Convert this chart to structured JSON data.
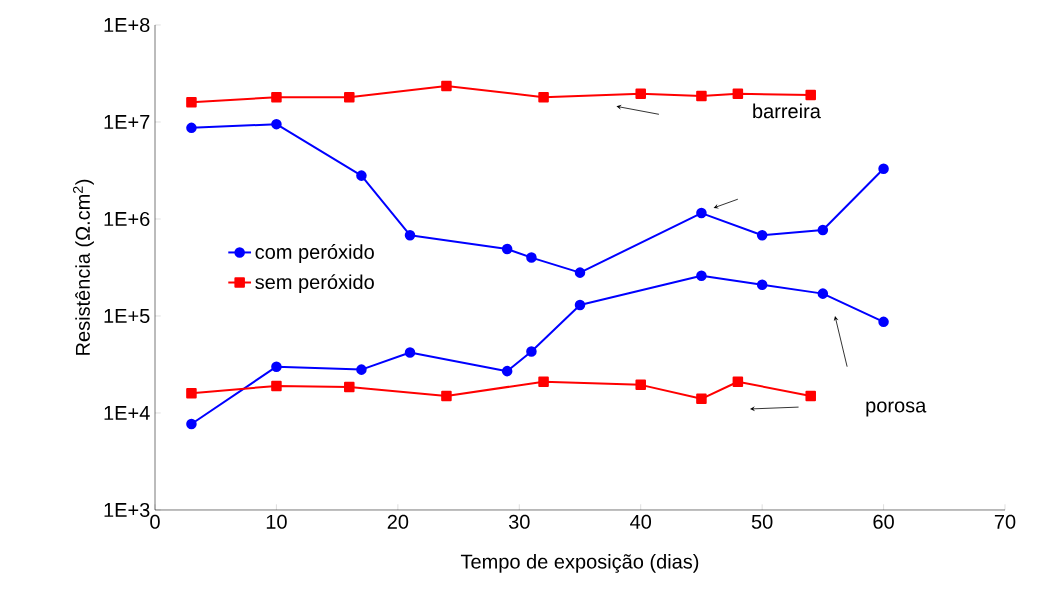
{
  "chart_data": {
    "type": "line",
    "xlabel": "Tempo de exposição (dias)",
    "ylabel": "Resistência (Ω.cm$^{2}$)",
    "log": "y",
    "grid": false,
    "legend": "left",
    "line_style": "solid",
    "xlim": [
      0,
      70
    ],
    "xticks": [
      0,
      10,
      20,
      30,
      40,
      50,
      60,
      70
    ],
    "ylim": [
      1000,
      100000000
    ],
    "yticks": [
      {
        "value": 1000,
        "label": "1E+3"
      },
      {
        "value": 10000,
        "label": "1E+4"
      },
      {
        "value": 100000,
        "label": "1E+5"
      },
      {
        "value": 1000000,
        "label": "1E+6"
      },
      {
        "value": 10000000,
        "label": "1E+7"
      },
      {
        "value": 100000000,
        "label": "1E+8"
      }
    ],
    "annotations": [
      "barreira",
      "porosa"
    ],
    "series": [
      {
        "name": "com peróxido",
        "color": "#0000ff",
        "marker": "circle",
        "x": [
          3,
          10,
          17,
          21,
          29,
          31,
          35,
          45,
          50,
          55,
          60
        ],
        "values": [
          8700000,
          9500000,
          2800000,
          680000,
          490000,
          400000,
          280000,
          1150000,
          680000,
          770000,
          3300000
        ]
      },
      {
        "color": "#0000ff",
        "marker": "circle",
        "x": [
          3,
          10,
          17,
          21,
          29,
          31,
          35,
          45,
          50,
          55,
          60
        ],
        "values": [
          7700,
          30000,
          28000,
          42000,
          27000,
          43000,
          130000,
          260000,
          210000,
          170000,
          87000
        ]
      },
      {
        "name": "sem peróxido",
        "color": "#ff0000",
        "marker": "square",
        "x": [
          3,
          10,
          16,
          24,
          32,
          40,
          45,
          48,
          54
        ],
        "values": [
          16000000,
          18000000,
          18000000,
          23500000,
          18000000,
          19500000,
          18500000,
          19500000,
          19000000
        ]
      },
      {
        "color": "#ff0000",
        "marker": "square",
        "x": [
          3,
          10,
          16,
          24,
          32,
          40,
          45,
          48,
          54
        ],
        "values": [
          16000,
          19000,
          18500,
          15000,
          21000,
          19500,
          14000,
          21000,
          15000
        ]
      }
    ]
  }
}
